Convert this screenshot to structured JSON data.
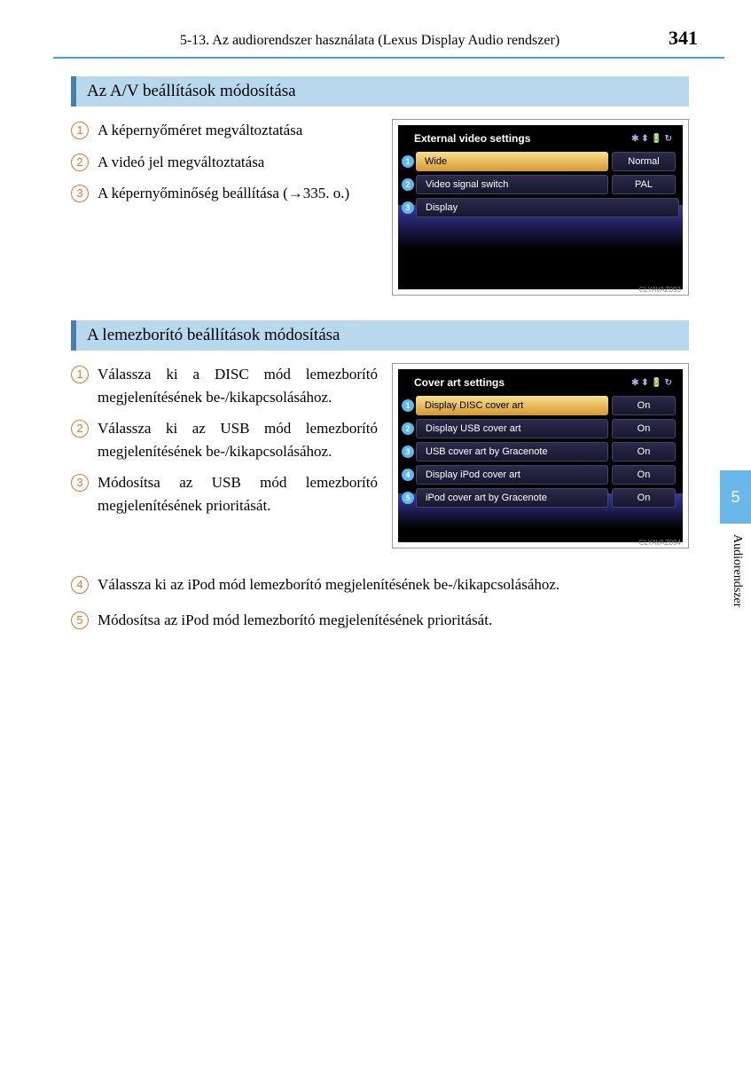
{
  "header": {
    "chapter_title": "5-13. Az audiorendszer használata (Lexus Display Audio rendszer)",
    "page_number": "341"
  },
  "sideTab": {
    "number": "5",
    "label": "Audiorendszer"
  },
  "section1": {
    "title": "Az A/V beállítások módosítása",
    "items": [
      "A képernyőméret megváltoztatása",
      "A videó jel megváltoztatása",
      "A képernyőminőség beállítása (→335. o.)"
    ],
    "screenshot": {
      "title": "External video settings",
      "rows": [
        {
          "label": "Wide",
          "value": "Normal",
          "highlight": true
        },
        {
          "label": "Video signal switch",
          "value": "PAL",
          "highlight": false
        },
        {
          "label": "Display",
          "value": "",
          "highlight": false
        }
      ],
      "code": "CLYAVAZ093"
    }
  },
  "section2": {
    "title": "A lemezborító beállítások módosítása",
    "items": [
      "Válassza ki a DISC mód lemezborító megjelenítésének be-/kikapcsolásához.",
      "Válassza ki az USB mód lemezborító megjelenítésének be-/kikapcsolásához.",
      "Módosítsa az USB mód lemezborító megjelenítésének prioritását.",
      "Válassza ki az iPod mód lemezborító megjelenítésének be-/kikapcsolásához.",
      "Módosítsa az iPod mód lemezborító megjelenítésének prioritását."
    ],
    "screenshot": {
      "title": "Cover art settings",
      "rows": [
        {
          "label": "Display DISC cover art",
          "value": "On",
          "highlight": true
        },
        {
          "label": "Display USB cover art",
          "value": "On",
          "highlight": false
        },
        {
          "label": "USB cover art by Gracenote",
          "value": "On",
          "highlight": false
        },
        {
          "label": "Display iPod cover art",
          "value": "On",
          "highlight": false
        },
        {
          "label": "iPod cover art by Gracenote",
          "value": "On",
          "highlight": false
        }
      ],
      "code": "CLYAVAZ094"
    }
  }
}
